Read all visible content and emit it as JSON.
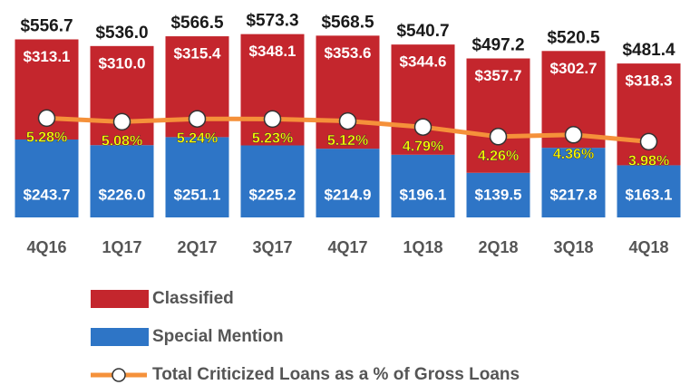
{
  "chart_data": {
    "type": "stacked_bar_line",
    "categories": [
      "4Q16",
      "1Q17",
      "2Q17",
      "3Q17",
      "4Q17",
      "1Q18",
      "2Q18",
      "3Q18",
      "4Q18"
    ],
    "series": [
      {
        "name": "Special Mention",
        "color": "#2e75c6",
        "values": [
          243.7,
          226.0,
          251.1,
          225.2,
          214.9,
          196.1,
          139.5,
          217.8,
          163.1
        ],
        "value_labels": [
          "$243.7",
          "$226.0",
          "$251.1",
          "$225.2",
          "$214.9",
          "$196.1",
          "$139.5",
          "$217.8",
          "$163.1"
        ]
      },
      {
        "name": "Classified",
        "color": "#c4262d",
        "values": [
          313.1,
          310.0,
          315.4,
          348.1,
          353.6,
          344.6,
          357.7,
          302.7,
          318.3
        ],
        "value_labels": [
          "$313.1",
          "$310.0",
          "$315.4",
          "$348.1",
          "$353.6",
          "$344.6",
          "$357.7",
          "$302.7",
          "$318.3"
        ]
      },
      {
        "name": "Total Criticized Loans as a % of Gross Loans",
        "color": "#f5913a",
        "axis": "y2",
        "values": [
          5.28,
          5.08,
          5.24,
          5.23,
          5.12,
          4.79,
          4.26,
          4.36,
          3.98
        ],
        "value_labels": [
          "5.28%",
          "5.08%",
          "5.24%",
          "5.23%",
          "5.12%",
          "4.79%",
          "4.26%",
          "4.36%",
          "3.98%"
        ]
      }
    ],
    "totals": [
      556.7,
      536.0,
      566.5,
      573.3,
      568.5,
      540.7,
      497.2,
      520.5,
      481.4
    ],
    "total_labels": [
      "$556.7",
      "$536.0",
      "$566.5",
      "$573.3",
      "$568.5",
      "$540.7",
      "$497.2",
      "$520.5",
      "$481.4"
    ],
    "ylim": [
      0,
      680
    ],
    "y2lim": [
      -0.2,
      11.8
    ],
    "legend": "bottom"
  }
}
